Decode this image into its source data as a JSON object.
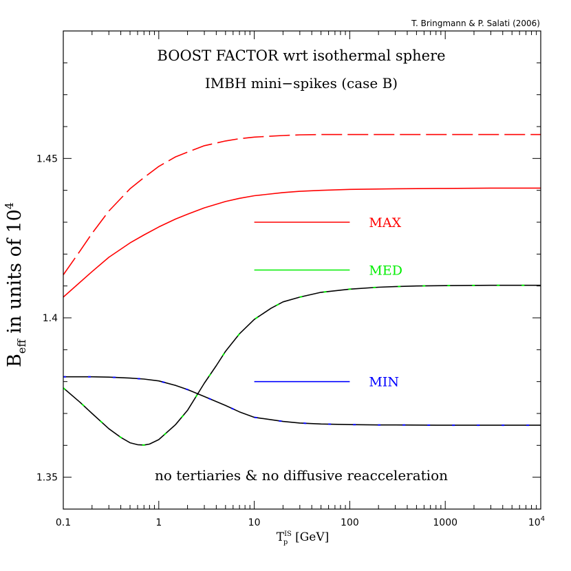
{
  "chart_data": {
    "type": "line",
    "credit": "T. Bringmann & P. Salati (2006)",
    "title": "BOOST FACTOR wrt isothermal sphere",
    "subtitle": "IMBH mini−spikes (case B)",
    "annotation": "no tertiaries & no diffusive reacceleration",
    "ylabel": {
      "main": "B",
      "sub": "eff",
      "rest": " in units of 10",
      "sup": "4"
    },
    "xlabel": {
      "main": "T",
      "sup": "IS",
      "sub": "p",
      "rest": "  [GeV]"
    },
    "x_scale": "log",
    "xlim": [
      0.1,
      10000
    ],
    "ylim": [
      1.34,
      1.49
    ],
    "x_ticks": [
      {
        "value": 0.1,
        "label": "0.1"
      },
      {
        "value": 1,
        "label": "1"
      },
      {
        "value": 10,
        "label": "10"
      },
      {
        "value": 100,
        "label": "100"
      },
      {
        "value": 1000,
        "label": "1000"
      }
    ],
    "x_last_tick": {
      "value": 10000,
      "base": "10",
      "exp": "4"
    },
    "y_ticks": [
      {
        "value": 1.35,
        "label": "1.35"
      },
      {
        "value": 1.4,
        "label": "1.4"
      },
      {
        "value": 1.45,
        "label": "1.45"
      }
    ],
    "legend": [
      {
        "label": "MAX",
        "color": "#ff0000",
        "x_range": [
          10,
          100
        ],
        "y": 1.43
      },
      {
        "label": "MED",
        "color": "#00ee00",
        "x_range": [
          10,
          100
        ],
        "y": 1.415
      },
      {
        "label": "MIN",
        "color": "#0000ff",
        "x_range": [
          10,
          100
        ],
        "y": 1.38
      }
    ],
    "series": [
      {
        "group": "MAX",
        "style": "solid",
        "color": "#ff0000",
        "x": [
          0.1,
          0.2,
          0.3,
          0.5,
          0.7,
          1,
          1.5,
          2,
          3,
          5,
          7,
          10,
          20,
          30,
          50,
          100,
          300,
          1000,
          3000,
          10000
        ],
        "y": [
          1.4065,
          1.4145,
          1.419,
          1.4235,
          1.426,
          1.4285,
          1.431,
          1.4325,
          1.4345,
          1.4365,
          1.4375,
          1.4383,
          1.4393,
          1.4397,
          1.44,
          1.4403,
          1.4405,
          1.4406,
          1.4407,
          1.4407
        ]
      },
      {
        "group": "MAX",
        "style": "dashed",
        "color": "#ff0000",
        "x": [
          0.1,
          0.15,
          0.2,
          0.3,
          0.5,
          0.7,
          1,
          1.5,
          2,
          3,
          5,
          7,
          10,
          20,
          30,
          50,
          100,
          300,
          1000,
          3000,
          10000
        ],
        "y": [
          1.4135,
          1.421,
          1.4265,
          1.4335,
          1.4405,
          1.444,
          1.4475,
          1.4505,
          1.452,
          1.454,
          1.4555,
          1.4562,
          1.4567,
          1.4572,
          1.4574,
          1.4575,
          1.4575,
          1.4575,
          1.4575,
          1.4575,
          1.4575
        ]
      },
      {
        "group": "MED",
        "style": "solid",
        "color": "#000000",
        "overlay_color": "#00ee00",
        "x": [
          0.1,
          0.15,
          0.2,
          0.3,
          0.4,
          0.5,
          0.6,
          0.7,
          0.8,
          1,
          1.5,
          2,
          3,
          4,
          5,
          7,
          10,
          15,
          20,
          30,
          50,
          100,
          200,
          300,
          500,
          1000,
          3000,
          10000
        ],
        "y": [
          1.378,
          1.3735,
          1.37,
          1.3652,
          1.3625,
          1.3608,
          1.3602,
          1.3601,
          1.3604,
          1.3618,
          1.3665,
          1.371,
          1.3795,
          1.385,
          1.3895,
          1.395,
          1.3995,
          1.403,
          1.405,
          1.4065,
          1.408,
          1.409,
          1.4096,
          1.4098,
          1.41,
          1.4101,
          1.4102,
          1.4102
        ]
      },
      {
        "group": "MIN",
        "style": "solid",
        "color": "#000000",
        "overlay_color": "#0000ff",
        "x": [
          0.1,
          0.2,
          0.3,
          0.5,
          0.7,
          1,
          1.5,
          2,
          3,
          5,
          7,
          10,
          20,
          30,
          50,
          100,
          200,
          300,
          1000,
          3000,
          10000
        ],
        "y": [
          1.3815,
          1.3815,
          1.3814,
          1.3811,
          1.3808,
          1.3802,
          1.3788,
          1.3775,
          1.3753,
          1.3725,
          1.3705,
          1.3688,
          1.3675,
          1.367,
          1.3667,
          1.3665,
          1.3664,
          1.3664,
          1.3663,
          1.3663,
          1.3663
        ]
      }
    ]
  }
}
